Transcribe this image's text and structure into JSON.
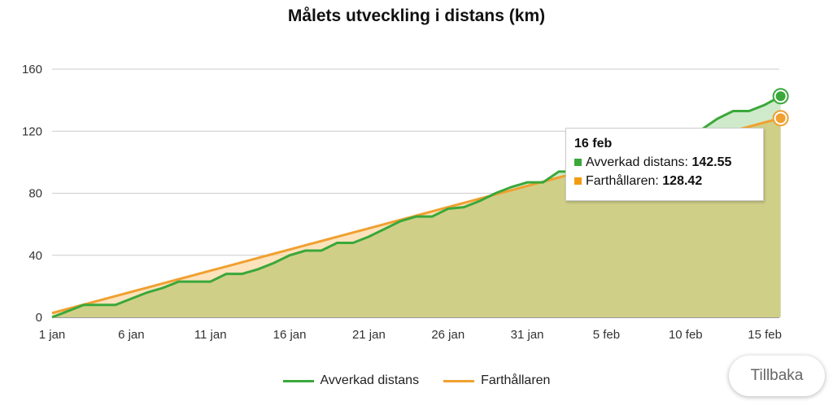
{
  "chart_data": {
    "type": "area",
    "title": "Målets utveckling i distans (km)",
    "xlabel": "",
    "ylabel": "",
    "ylim": [
      0,
      160
    ],
    "yticks": [
      "0",
      "40",
      "80",
      "120",
      "160"
    ],
    "xticks": [
      {
        "day": 1,
        "label": "1 jan"
      },
      {
        "day": 6,
        "label": "6 jan"
      },
      {
        "day": 11,
        "label": "11 jan"
      },
      {
        "day": 16,
        "label": "16 jan"
      },
      {
        "day": 21,
        "label": "21 jan"
      },
      {
        "day": 26,
        "label": "26 jan"
      },
      {
        "day": 31,
        "label": "31 jan"
      },
      {
        "day": 36,
        "label": "5 feb"
      },
      {
        "day": 41,
        "label": "10 feb"
      },
      {
        "day": 46,
        "label": "15 feb"
      }
    ],
    "grid": true,
    "legend_position": "bottom",
    "series": [
      {
        "name": "Avverkad distans",
        "color": "#3aa83a",
        "fill": "#bfe3b9",
        "values": [
          0,
          4,
          8,
          8,
          8,
          12,
          16,
          19,
          23,
          23,
          23,
          28,
          28,
          31,
          35,
          40,
          43,
          43,
          48,
          48,
          52,
          57,
          62,
          65,
          65,
          70,
          71,
          75,
          80,
          84,
          87,
          87,
          94,
          94,
          96,
          98,
          100,
          103,
          106,
          110,
          116,
          121,
          128,
          133,
          133,
          137,
          142.55
        ]
      },
      {
        "name": "Farthållaren",
        "color": "#f0a030",
        "fill": "#fbd9a6",
        "values": [
          2.73,
          5.46,
          8.2,
          10.93,
          13.66,
          16.39,
          19.12,
          21.86,
          24.59,
          27.32,
          30.05,
          32.78,
          35.52,
          38.25,
          40.98,
          43.71,
          46.44,
          49.18,
          51.91,
          54.64,
          57.37,
          60.1,
          62.84,
          65.57,
          68.3,
          71.03,
          73.76,
          76.5,
          79.23,
          81.96,
          84.69,
          87.42,
          90.16,
          92.89,
          95.62,
          98.35,
          101.08,
          103.82,
          106.55,
          109.28,
          112.01,
          114.74,
          117.48,
          120.21,
          122.94,
          125.67,
          128.42
        ]
      }
    ]
  },
  "tooltip": {
    "date": "16 feb",
    "rows": [
      {
        "label": "Avverkad distans:",
        "value": "142.55",
        "color": "#3aa83a"
      },
      {
        "label": "Farthållaren:",
        "value": "128.42",
        "color": "#f39c12"
      }
    ]
  },
  "back_button": "Tillbaka"
}
